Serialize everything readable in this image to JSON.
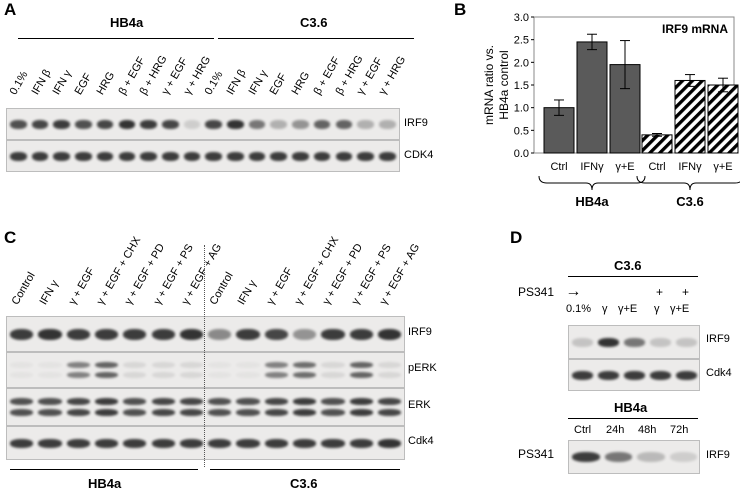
{
  "panels": {
    "A": {
      "letter": "A",
      "group1": "HB4a",
      "group2": "C3.6",
      "lanes": [
        "0.1%",
        "IFN β",
        "IFN γ",
        "EGF",
        "HRG",
        "β + EGF",
        "β + HRG",
        "γ + EGF",
        "γ + HRG",
        "0.1%",
        "IFN β",
        "IFN γ",
        "EGF",
        "HRG",
        "β + EGF",
        "β + HRG",
        "γ + EGF",
        "γ + HRG"
      ],
      "blots": [
        "IRF9",
        "CDK4"
      ],
      "irf9_intensity": [
        0.8,
        0.85,
        0.9,
        0.8,
        0.85,
        0.95,
        0.9,
        0.85,
        0.15,
        0.85,
        0.95,
        0.6,
        0.3,
        0.45,
        0.7,
        0.7,
        0.3,
        0.3
      ],
      "cdk4_intensity": [
        0.9,
        0.9,
        0.9,
        0.9,
        0.9,
        0.9,
        0.9,
        0.9,
        0.9,
        0.9,
        0.9,
        0.9,
        0.9,
        0.9,
        0.9,
        0.9,
        0.9,
        0.9
      ]
    },
    "B": {
      "letter": "B",
      "group1": "HB4a",
      "group2": "C3.6"
    },
    "C": {
      "letter": "C",
      "group1": "HB4a",
      "group2": "C3.6",
      "lanes": [
        "Control",
        "IFN γ",
        "γ + EGF",
        "γ + EGF + CHX",
        "γ + EGF + PD",
        "γ + EGF + PS",
        "γ + EGF + AG",
        "Control",
        "IFN γ",
        "γ + EGF",
        "γ + EGF + CHX",
        "γ + EGF + PD",
        "γ + EGF + PS",
        "γ + EGF + AG"
      ],
      "blots": [
        "IRF9",
        "pERK",
        "ERK",
        "Cdk4"
      ],
      "irf9_intensity": [
        0.9,
        0.95,
        0.9,
        0.9,
        0.9,
        0.9,
        0.95,
        0.5,
        0.9,
        0.85,
        0.45,
        0.9,
        0.9,
        0.95
      ],
      "perk_intensity": [
        0,
        0,
        0.55,
        0.7,
        0.1,
        0.1,
        0.1,
        0,
        0,
        0.55,
        0.65,
        0.1,
        0.7,
        0.1
      ],
      "erk_intensity": [
        0.8,
        0.8,
        0.85,
        0.9,
        0.8,
        0.85,
        0.85,
        0.8,
        0.8,
        0.85,
        0.9,
        0.8,
        0.9,
        0.85
      ],
      "cdk4_intensity": [
        0.9,
        0.9,
        0.9,
        0.9,
        0.9,
        0.9,
        0.9,
        0.9,
        0.9,
        0.9,
        0.9,
        0.9,
        0.9,
        0.95
      ]
    },
    "D": {
      "letter": "D",
      "top_group": "C3.6",
      "ps341": "PS341",
      "arrow": "→",
      "plus": "+",
      "top_lanes": [
        "0.1%",
        "γ",
        "γ+E",
        "γ",
        "γ+E"
      ],
      "top_ps": [
        "",
        "",
        "",
        "+",
        "+"
      ],
      "top_blots": [
        "IRF9",
        "Cdk4"
      ],
      "top_irf9": [
        0.2,
        0.95,
        0.6,
        0.2,
        0.2
      ],
      "top_cdk4": [
        0.9,
        0.9,
        0.9,
        0.9,
        0.9
      ],
      "bottom_group": "HB4a",
      "bottom_lanes": [
        "Ctrl",
        "24h",
        "48h",
        "72h"
      ],
      "bottom_blot": "IRF9",
      "bottom_irf9": [
        0.9,
        0.6,
        0.25,
        0.15
      ]
    }
  },
  "chart_data": {
    "type": "bar",
    "title": "IRF9 mRNA",
    "ylabel": "mRNA ratio vs. HB4a control",
    "ylim": [
      0,
      3.0
    ],
    "yticks": [
      "0.0",
      "0.5",
      "1.0",
      "1.5",
      "2.0",
      "2.5",
      "3.0"
    ],
    "categories": [
      "Ctrl",
      "IFNγ",
      "γ+E",
      "Ctrl",
      "IFNγ",
      "γ+E"
    ],
    "groups": [
      {
        "name": "HB4a",
        "categories": [
          "Ctrl",
          "IFNγ",
          "γ+E"
        ],
        "values": [
          1.0,
          2.45,
          1.95
        ],
        "errors": [
          0.17,
          0.17,
          0.53
        ],
        "fill": "solid"
      },
      {
        "name": "C3.6",
        "categories": [
          "Ctrl",
          "IFNγ",
          "γ+E"
        ],
        "values": [
          0.4,
          1.6,
          1.5
        ],
        "errors": [
          0.03,
          0.13,
          0.15
        ],
        "fill": "hatched"
      }
    ],
    "colors": {
      "solid": "#5a5a5a",
      "hatch": "#000000"
    }
  }
}
